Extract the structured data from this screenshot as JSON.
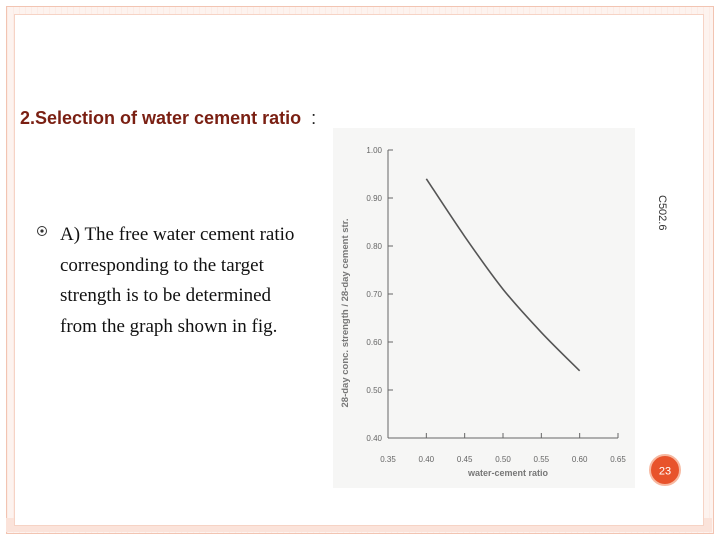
{
  "slide": {
    "title": "2.Selection of water cement ratio",
    "title_suffix": ":",
    "body": "A) The free water cement ratio corresponding to the target strength is to be determined from the graph shown in fig.",
    "side_code": "C502.6",
    "page_number": "23",
    "colors": {
      "title": "#7a1f12",
      "accent": "#e8532b"
    }
  },
  "chart_data": {
    "type": "line",
    "xlabel": "water-cement ratio",
    "ylabel": "28-day conc. strength / 28-day cement str.",
    "xlim": [
      0.35,
      0.65
    ],
    "ylim": [
      0.4,
      1.0
    ],
    "x_ticks": [
      "0.35",
      "0.40",
      "0.45",
      "0.50",
      "0.55",
      "0.60",
      "0.65"
    ],
    "y_ticks": [
      "0.40",
      "0.50",
      "0.60",
      "0.70",
      "0.80",
      "0.90",
      "1.00"
    ],
    "grid": false,
    "series": [
      {
        "x": [
          0.4,
          0.45,
          0.5,
          0.55,
          0.6
        ],
        "y": [
          0.94,
          0.82,
          0.71,
          0.62,
          0.54
        ]
      }
    ]
  }
}
